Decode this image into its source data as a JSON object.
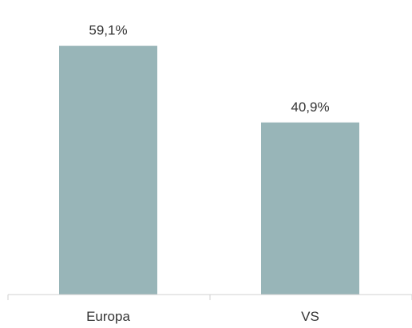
{
  "chart_data": {
    "type": "bar",
    "categories": [
      "Europa",
      "VS"
    ],
    "values": [
      59.1,
      40.9
    ],
    "data_labels": [
      "59,1%",
      "40,9%"
    ],
    "title": "",
    "xlabel": "",
    "ylabel": "",
    "ylim": [
      0,
      70
    ],
    "grid": false,
    "legend": "none",
    "bar_color": "#98b5b8",
    "axis_color": "#d0d0d0",
    "text_color": "#333333"
  }
}
